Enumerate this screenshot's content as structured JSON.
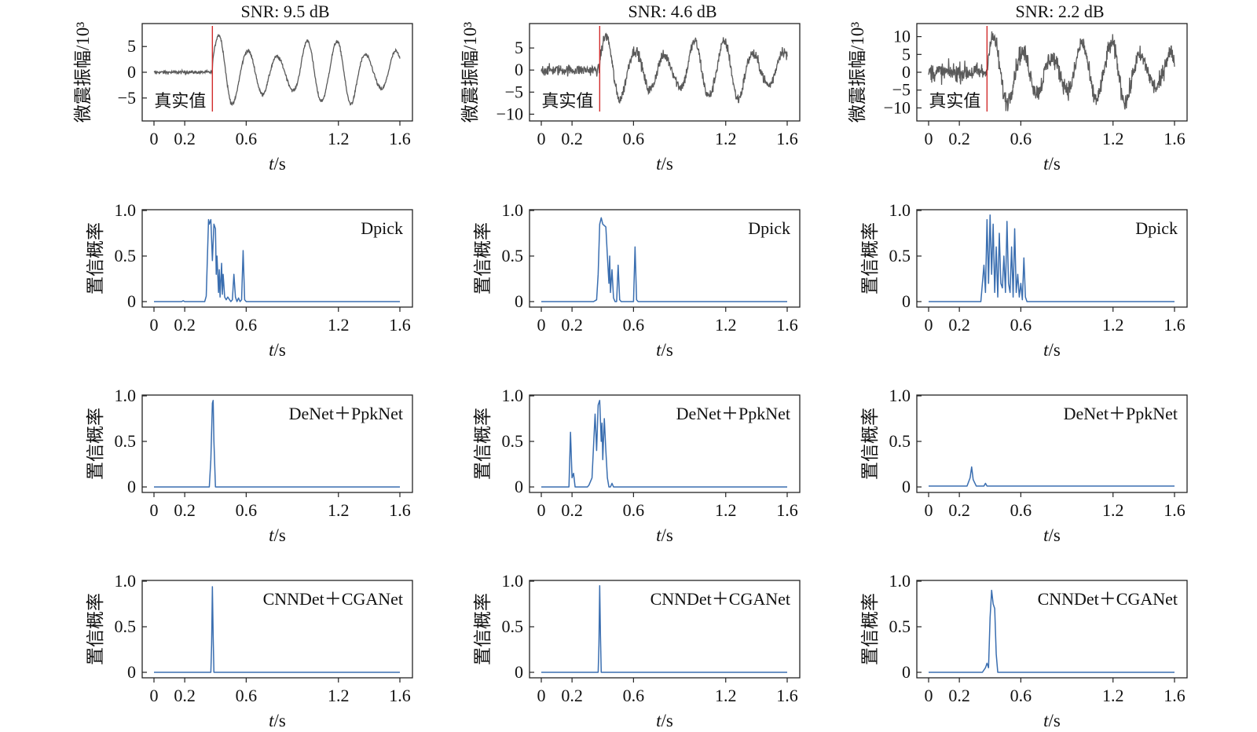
{
  "figure": {
    "colors": {
      "seismic": "#5a5a5a",
      "confidence": "#3a6eb0",
      "true_marker": "#d12b2b",
      "axis": "#222222"
    }
  },
  "chart_data": [
    {
      "type": "line",
      "panel": "waveform",
      "title": "SNR: 9.5 dB",
      "xlabel": "t/s",
      "ylabel": "微震振幅/10³",
      "xticks": [
        "0",
        "0.2",
        "0.6",
        "1.2",
        "1.6"
      ],
      "yticks": [
        "5",
        "0",
        "−5"
      ],
      "xlim": [
        0,
        1.6
      ],
      "ylim": [
        -9,
        9
      ],
      "snr_db": 9.5,
      "true_arrival_s": 0.38,
      "annotation": "真实值",
      "series": [
        {
          "noise_amplitude": 0.4,
          "peak_amplitude": 7.5
        }
      ]
    },
    {
      "type": "line",
      "panel": "waveform",
      "title": "SNR: 4.6 dB",
      "xlabel": "t/s",
      "ylabel": "微震振幅/10³",
      "xticks": [
        "0",
        "0.2",
        "0.6",
        "1.2",
        "1.6"
      ],
      "yticks": [
        "5",
        "0",
        "−5",
        "−10"
      ],
      "xlim": [
        0,
        1.6
      ],
      "ylim": [
        -11,
        10
      ],
      "snr_db": 4.6,
      "true_arrival_s": 0.38,
      "annotation": "真实值",
      "series": [
        {
          "noise_amplitude": 1.5,
          "peak_amplitude": 8
        }
      ]
    },
    {
      "type": "line",
      "panel": "waveform",
      "title": "SNR: 2.2 dB",
      "xlabel": "t/s",
      "ylabel": "微震振幅/10³",
      "xticks": [
        "0",
        "0.2",
        "0.6",
        "1.2",
        "1.6"
      ],
      "yticks": [
        "10",
        "5",
        "0",
        "−5",
        "−10"
      ],
      "xlim": [
        0,
        1.6
      ],
      "ylim": [
        -13,
        13
      ],
      "snr_db": 2.2,
      "true_arrival_s": 0.38,
      "annotation": "真实值",
      "series": [
        {
          "noise_amplitude": 3.2,
          "peak_amplitude": 10
        }
      ]
    },
    {
      "type": "line",
      "panel": "confidence",
      "legend": "Dpick",
      "xlabel": "t/s",
      "ylabel": "置信概率",
      "xticks": [
        "0",
        "0.2",
        "0.6",
        "1.2",
        "1.6"
      ],
      "yticks": [
        "1.0",
        "0.5",
        "0"
      ],
      "xlim": [
        0,
        1.6
      ],
      "ylim": [
        0,
        1.0
      ],
      "series": [
        {
          "x": [
            0,
            0.18,
            0.19,
            0.2,
            0.33,
            0.34,
            0.355,
            0.36,
            0.37,
            0.38,
            0.39,
            0.4,
            0.405,
            0.41,
            0.42,
            0.425,
            0.43,
            0.44,
            0.445,
            0.45,
            0.46,
            0.47,
            0.48,
            0.5,
            0.51,
            0.52,
            0.53,
            0.54,
            0.55,
            0.56,
            0.57,
            0.58,
            0.59,
            0.6,
            1.6
          ],
          "y": [
            0,
            0,
            0.01,
            0,
            0,
            0.06,
            0.9,
            0.85,
            0.9,
            0.45,
            0.85,
            0.8,
            0.3,
            0.5,
            0.1,
            0.35,
            0.05,
            0.42,
            0.08,
            0.3,
            0.05,
            0.02,
            0.05,
            0.0,
            0.02,
            0.3,
            0.05,
            0.0,
            0.04,
            0.0,
            0.02,
            0.56,
            0.02,
            0.0,
            0
          ]
        }
      ]
    },
    {
      "type": "line",
      "panel": "confidence",
      "legend": "Dpick",
      "xlabel": "t/s",
      "ylabel": "置信概率",
      "xticks": [
        "0",
        "0.2",
        "0.6",
        "1.2",
        "1.6"
      ],
      "yticks": [
        "1.0",
        "0.5",
        "0"
      ],
      "xlim": [
        0,
        1.6
      ],
      "ylim": [
        0,
        1.0
      ],
      "series": [
        {
          "x": [
            0,
            0.34,
            0.36,
            0.37,
            0.38,
            0.39,
            0.4,
            0.42,
            0.43,
            0.44,
            0.445,
            0.45,
            0.46,
            0.47,
            0.48,
            0.49,
            0.5,
            0.51,
            0.52,
            0.53,
            0.6,
            0.61,
            0.62,
            0.63,
            1.6
          ],
          "y": [
            0,
            0,
            0.02,
            0.3,
            0.85,
            0.92,
            0.85,
            0.82,
            0.5,
            0.2,
            0.5,
            0.1,
            0.35,
            0.04,
            0.0,
            0.0,
            0.4,
            0.02,
            0.0,
            0.0,
            0.0,
            0.6,
            0.02,
            0.0,
            0
          ]
        }
      ]
    },
    {
      "type": "line",
      "panel": "confidence",
      "legend": "Dpick",
      "xlabel": "t/s",
      "ylabel": "置信概率",
      "xticks": [
        "0",
        "0.2",
        "0.6",
        "1.2",
        "1.6"
      ],
      "yticks": [
        "1.0",
        "0.5",
        "0"
      ],
      "xlim": [
        0,
        1.6
      ],
      "ylim": [
        0,
        1.0
      ],
      "series": [
        {
          "x": [
            0,
            0.34,
            0.36,
            0.37,
            0.38,
            0.39,
            0.4,
            0.41,
            0.42,
            0.43,
            0.44,
            0.45,
            0.46,
            0.47,
            0.48,
            0.49,
            0.5,
            0.51,
            0.52,
            0.53,
            0.54,
            0.55,
            0.56,
            0.57,
            0.58,
            0.59,
            0.6,
            0.61,
            0.62,
            0.63,
            0.64,
            0.65,
            1.6
          ],
          "y": [
            0,
            0,
            0.4,
            0.1,
            0.9,
            0.2,
            0.95,
            0.3,
            0.85,
            0.1,
            0.6,
            0.05,
            0.75,
            0.2,
            0.15,
            0.5,
            0.1,
            0.88,
            0.2,
            0.1,
            0.6,
            0.05,
            0.8,
            0.1,
            0.3,
            0.05,
            0.2,
            0.02,
            0.48,
            0.05,
            0.0,
            0.0,
            0
          ]
        }
      ]
    },
    {
      "type": "line",
      "panel": "confidence",
      "legend": "DeNet＋PpkNet",
      "xlabel": "t/s",
      "ylabel": "置信概率",
      "xticks": [
        "0",
        "0.2",
        "0.6",
        "1.2",
        "1.6"
      ],
      "yticks": [
        "1.0",
        "0.5",
        "0"
      ],
      "xlim": [
        0,
        1.6
      ],
      "ylim": [
        0,
        1.0
      ],
      "series": [
        {
          "x": [
            0,
            0.36,
            0.37,
            0.38,
            0.385,
            0.39,
            0.4,
            1.6
          ],
          "y": [
            0,
            0,
            0.3,
            0.92,
            0.95,
            0.5,
            0.0,
            0
          ]
        }
      ]
    },
    {
      "type": "line",
      "panel": "confidence",
      "legend": "DeNet＋PpkNet",
      "xlabel": "t/s",
      "ylabel": "置信概率",
      "xticks": [
        "0",
        "0.2",
        "0.6",
        "1.2",
        "1.6"
      ],
      "yticks": [
        "1.0",
        "0.5",
        "0"
      ],
      "xlim": [
        0,
        1.6
      ],
      "ylim": [
        0,
        1.0
      ],
      "series": [
        {
          "x": [
            0,
            0.18,
            0.19,
            0.2,
            0.21,
            0.22,
            0.3,
            0.31,
            0.33,
            0.35,
            0.36,
            0.37,
            0.38,
            0.39,
            0.395,
            0.4,
            0.41,
            0.42,
            0.43,
            0.44,
            0.45,
            0.46,
            0.47,
            0.48,
            0.5,
            1.6
          ],
          "y": [
            0,
            0,
            0.6,
            0.1,
            0.15,
            0.0,
            0.0,
            0.02,
            0.1,
            0.8,
            0.4,
            0.9,
            0.95,
            0.5,
            0.7,
            0.3,
            0.75,
            0.4,
            0.1,
            0.0,
            0.0,
            0.04,
            0.0,
            0.0,
            0.0,
            0
          ]
        }
      ]
    },
    {
      "type": "line",
      "panel": "confidence",
      "legend": "DeNet＋PpkNet",
      "xlabel": "t/s",
      "ylabel": "置信概率",
      "xticks": [
        "0",
        "0.2",
        "0.6",
        "1.2",
        "1.6"
      ],
      "yticks": [
        "1.0",
        "0.5",
        "0"
      ],
      "xlim": [
        0,
        1.6
      ],
      "ylim": [
        0,
        1.0
      ],
      "series": [
        {
          "x": [
            0,
            0.25,
            0.27,
            0.28,
            0.29,
            0.31,
            0.36,
            0.37,
            0.38,
            0.4,
            1.6
          ],
          "y": [
            0.01,
            0.01,
            0.1,
            0.22,
            0.08,
            0.01,
            0.01,
            0.04,
            0.01,
            0.01,
            0.01
          ]
        }
      ]
    },
    {
      "type": "line",
      "panel": "confidence",
      "legend": "CNNDet＋CGANet",
      "xlabel": "t/s",
      "ylabel": "置信概率",
      "xticks": [
        "0",
        "0.2",
        "0.6",
        "1.2",
        "1.6"
      ],
      "yticks": [
        "1.0",
        "0.5",
        "0"
      ],
      "xlim": [
        0,
        1.6
      ],
      "ylim": [
        0,
        1.0
      ],
      "series": [
        {
          "x": [
            0,
            0.37,
            0.375,
            0.38,
            0.385,
            0.39,
            1.6
          ],
          "y": [
            0,
            0,
            0.3,
            0.94,
            0.4,
            0.0,
            0
          ]
        }
      ]
    },
    {
      "type": "line",
      "panel": "confidence",
      "legend": "CNNDet＋CGANet",
      "xlabel": "t/s",
      "ylabel": "置信概率",
      "xticks": [
        "0",
        "0.2",
        "0.6",
        "1.2",
        "1.6"
      ],
      "yticks": [
        "1.0",
        "0.5",
        "0"
      ],
      "xlim": [
        0,
        1.6
      ],
      "ylim": [
        0,
        1.0
      ],
      "series": [
        {
          "x": [
            0,
            0.37,
            0.375,
            0.38,
            0.385,
            0.39,
            1.6
          ],
          "y": [
            0,
            0,
            0.3,
            0.95,
            0.4,
            0.0,
            0
          ]
        }
      ]
    },
    {
      "type": "line",
      "panel": "confidence",
      "legend": "CNNDet＋CGANet",
      "xlabel": "t/s",
      "ylabel": "置信概率",
      "xticks": [
        "0",
        "0.2",
        "0.6",
        "1.2",
        "1.6"
      ],
      "yticks": [
        "1.0",
        "0.5",
        "0"
      ],
      "xlim": [
        0,
        1.6
      ],
      "ylim": [
        0,
        1.0
      ],
      "series": [
        {
          "x": [
            0,
            0.35,
            0.37,
            0.38,
            0.39,
            0.4,
            0.41,
            0.42,
            0.43,
            0.44,
            0.45,
            1.6
          ],
          "y": [
            0,
            0,
            0.05,
            0.1,
            0.05,
            0.6,
            0.9,
            0.75,
            0.7,
            0.2,
            0.0,
            0
          ]
        }
      ]
    }
  ]
}
